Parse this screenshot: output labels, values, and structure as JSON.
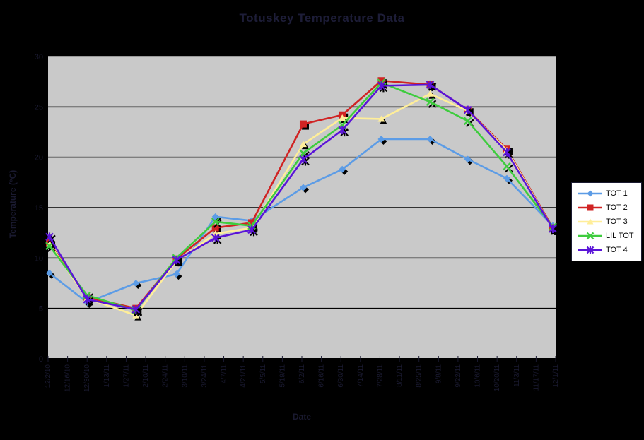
{
  "title": {
    "text": "Totuskey Temperature Data"
  },
  "axes": {
    "x_title": "Date",
    "y_title": "Temperature (°C)",
    "y_tick_labels": [
      "0",
      "5",
      "10",
      "15",
      "20",
      "25",
      "30"
    ]
  },
  "colors": {
    "background": "#000000",
    "plot_bg": "#C9C9C9",
    "plot_top_border": "#9A9A9A",
    "gridline": "#000000",
    "tick": "#1A1A30",
    "axis_text": "#1A1A30",
    "title_text": "#1D1D38",
    "legend_bg": "#FFFFFF",
    "marker_shadow": "#000000"
  },
  "chart_data": {
    "type": "line",
    "title": "Totuskey Temperature Data",
    "xlabel": "Date",
    "ylabel": "Temperature (°C)",
    "ylim": [
      0,
      30
    ],
    "y_tick_step": 5,
    "grid": "horizontal-only",
    "legend_position": "right",
    "x_range_days": [
      0,
      364
    ],
    "x_tick_interval_days": 14,
    "x_tick_labels": [
      "12/2/10",
      "12/16/10",
      "12/30/10",
      "1/13/11",
      "1/27/11",
      "2/10/11",
      "2/24/11",
      "3/10/11",
      "3/24/11",
      "4/7/11",
      "4/21/11",
      "5/5/11",
      "5/19/11",
      "6/2/11",
      "6/16/11",
      "6/30/11",
      "7/14/11",
      "7/28/11",
      "8/11/11",
      "8/25/11",
      "9/8/11",
      "9/22/11",
      "10/6/11",
      "10/20/11",
      "11/3/11",
      "11/17/11",
      "12/1/11"
    ],
    "x_days": [
      1,
      28,
      63,
      92,
      120,
      146,
      183,
      211,
      239,
      274,
      301,
      329,
      362
    ],
    "series": [
      {
        "name": "TOT 1",
        "color": "#5C9CE6",
        "marker": "diamond",
        "values": [
          8.5,
          5.6,
          7.5,
          8.4,
          14.1,
          13.7,
          17.0,
          18.8,
          21.8,
          21.8,
          19.8,
          17.9,
          13.2
        ]
      },
      {
        "name": "TOT 2",
        "color": "#D02323",
        "marker": "square",
        "values": [
          11.5,
          6.1,
          5.0,
          9.9,
          13.0,
          13.5,
          23.3,
          24.2,
          27.6,
          27.2,
          24.7,
          20.8,
          13.0
        ]
      },
      {
        "name": "TOT 3",
        "color": "#FFEE99",
        "marker": "triangle",
        "values": [
          11.4,
          6.0,
          4.3,
          9.7,
          12.4,
          13.0,
          21.3,
          23.9,
          23.8,
          26.3,
          24.6,
          20.7,
          12.9
        ]
      },
      {
        "name": "LIL TOT",
        "color": "#3ECC3E",
        "marker": "x",
        "values": [
          11.2,
          6.3,
          4.8,
          10.0,
          13.6,
          13.2,
          20.4,
          23.2,
          27.4,
          25.5,
          23.6,
          19.1,
          13.1
        ]
      },
      {
        "name": "TOT 4",
        "color": "#5A14D8",
        "marker": "asterisk",
        "values": [
          12.1,
          5.9,
          4.9,
          9.8,
          12.0,
          12.8,
          19.8,
          22.7,
          27.1,
          27.2,
          24.7,
          20.5,
          12.9
        ]
      }
    ]
  }
}
